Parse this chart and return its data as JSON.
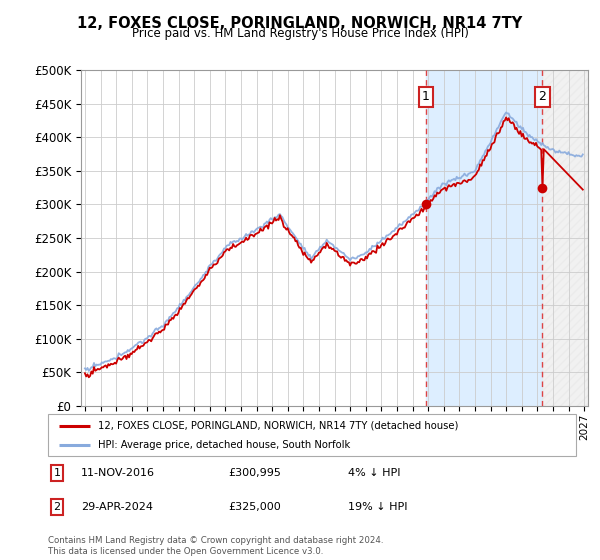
{
  "title": "12, FOXES CLOSE, PORINGLAND, NORWICH, NR14 7TY",
  "subtitle": "Price paid vs. HM Land Registry's House Price Index (HPI)",
  "legend_line1": "12, FOXES CLOSE, PORINGLAND, NORWICH, NR14 7TY (detached house)",
  "legend_line2": "HPI: Average price, detached house, South Norfolk",
  "annotation1_date": "11-NOV-2016",
  "annotation1_price": 300995,
  "annotation1_text": "£300,995",
  "annotation1_note": "4% ↓ HPI",
  "annotation2_date": "29-APR-2024",
  "annotation2_price": 325000,
  "annotation2_text": "£325,000",
  "annotation2_note": "19% ↓ HPI",
  "footer": "Contains HM Land Registry data © Crown copyright and database right 2024.\nThis data is licensed under the Open Government Licence v3.0.",
  "xmin": 1994.75,
  "xmax": 2027.25,
  "ymin": 0,
  "ymax": 500000,
  "sale1_x": 2016.87,
  "sale2_x": 2024.33,
  "red_line_color": "#cc0000",
  "blue_line_color": "#88aadd",
  "shade_color": "#ddeeff",
  "grid_color": "#cccccc",
  "bg_color": "#ffffff",
  "marker_color": "#cc0000",
  "hatch_color": "#bbccdd"
}
